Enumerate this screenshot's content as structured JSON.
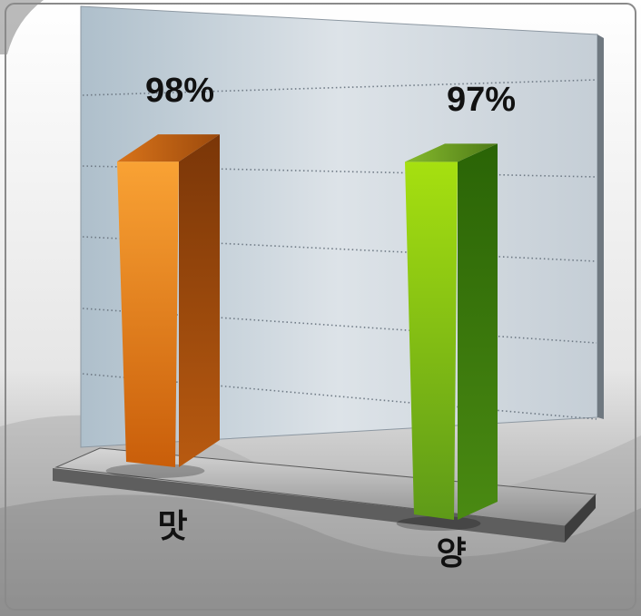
{
  "chart_data": {
    "type": "bar",
    "style": "3d",
    "categories": [
      "맛",
      "양"
    ],
    "values": [
      98,
      97
    ],
    "value_labels": [
      "98%",
      "97%"
    ],
    "title": "",
    "xlabel": "",
    "ylabel": "",
    "ylim": [
      0,
      100
    ],
    "grid": true,
    "colors": {
      "bar_1": "#f08a1c",
      "bar_2": "#7cc00c",
      "wall": "#c9d3dc",
      "floor": "#9a9a9a"
    }
  }
}
